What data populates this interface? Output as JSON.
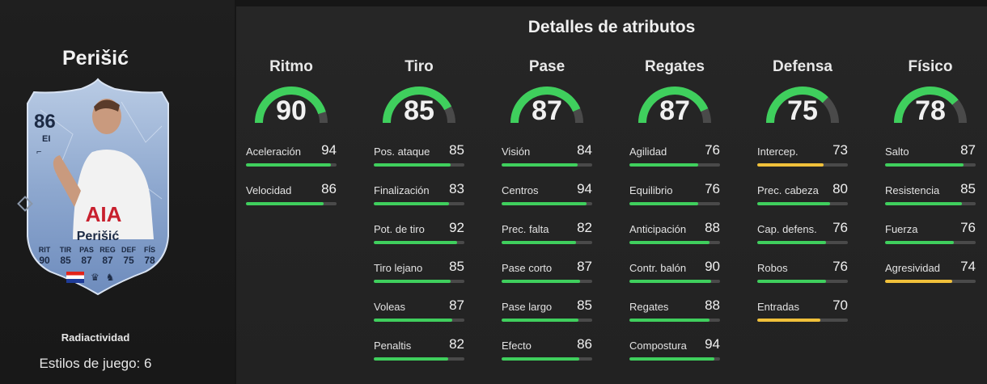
{
  "player": {
    "name": "Perišić",
    "card_name": "Perišić",
    "rating": "86",
    "position": "EI",
    "version": "Radiactividad",
    "playstyles": "Estilos de juego: 6",
    "card_stats": [
      {
        "label": "RIT",
        "value": "90"
      },
      {
        "label": "TIR",
        "value": "85"
      },
      {
        "label": "PAS",
        "value": "87"
      },
      {
        "label": "REG",
        "value": "87"
      },
      {
        "label": "DEF",
        "value": "75"
      },
      {
        "label": "FÍS",
        "value": "78"
      }
    ],
    "nation_flag": "croatia-flag",
    "league_icon": "premier-league-icon",
    "club_icon": "tottenham-icon"
  },
  "details": {
    "title": "Detalles de atributos",
    "colors": {
      "high": "#3fcf5d",
      "mid": "#f0c03a",
      "track": "#4a4a4a"
    },
    "categories": [
      {
        "name": "Ritmo",
        "value": 90,
        "attributes": [
          {
            "name": "Aceleración",
            "value": 94
          },
          {
            "name": "Velocidad",
            "value": 86
          }
        ]
      },
      {
        "name": "Tiro",
        "value": 85,
        "attributes": [
          {
            "name": "Pos. ataque",
            "value": 85
          },
          {
            "name": "Finalización",
            "value": 83
          },
          {
            "name": "Pot. de tiro",
            "value": 92
          },
          {
            "name": "Tiro lejano",
            "value": 85
          },
          {
            "name": "Voleas",
            "value": 87
          },
          {
            "name": "Penaltis",
            "value": 82
          }
        ]
      },
      {
        "name": "Pase",
        "value": 87,
        "attributes": [
          {
            "name": "Visión",
            "value": 84
          },
          {
            "name": "Centros",
            "value": 94
          },
          {
            "name": "Prec. falta",
            "value": 82
          },
          {
            "name": "Pase corto",
            "value": 87
          },
          {
            "name": "Pase largo",
            "value": 85
          },
          {
            "name": "Efecto",
            "value": 86
          }
        ]
      },
      {
        "name": "Regates",
        "value": 87,
        "attributes": [
          {
            "name": "Agilidad",
            "value": 76
          },
          {
            "name": "Equilibrio",
            "value": 76
          },
          {
            "name": "Anticipación",
            "value": 88
          },
          {
            "name": "Contr. balón",
            "value": 90
          },
          {
            "name": "Regates",
            "value": 88
          },
          {
            "name": "Compostura",
            "value": 94
          }
        ]
      },
      {
        "name": "Defensa",
        "value": 75,
        "attributes": [
          {
            "name": "Intercep.",
            "value": 73
          },
          {
            "name": "Prec. cabeza",
            "value": 80
          },
          {
            "name": "Cap. defens.",
            "value": 76
          },
          {
            "name": "Robos",
            "value": 76
          },
          {
            "name": "Entradas",
            "value": 70
          }
        ]
      },
      {
        "name": "Físico",
        "value": 78,
        "attributes": [
          {
            "name": "Salto",
            "value": 87
          },
          {
            "name": "Resistencia",
            "value": 85
          },
          {
            "name": "Fuerza",
            "value": 76
          },
          {
            "name": "Agresividad",
            "value": 74
          }
        ]
      }
    ]
  }
}
